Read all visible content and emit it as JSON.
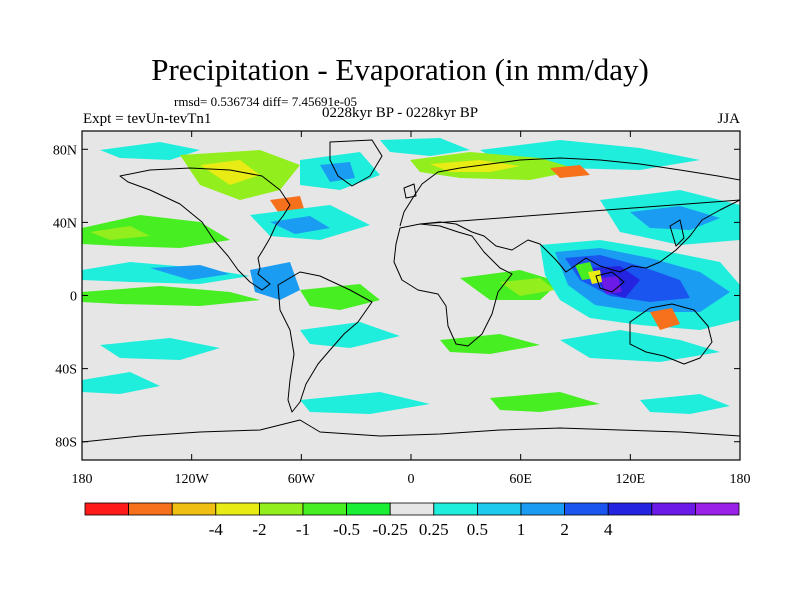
{
  "title": "Precipitation - Evaporation (in mm/day)",
  "stats": "rmsd= 0.536734 diff= 7.45691e-05",
  "expt": "Expt = tevUn-tevTn1",
  "period": "0228kyr BP - 0228kyr BP",
  "season": "JJA",
  "map": {
    "lon_range": [
      -180,
      180
    ],
    "lat_range": [
      -90,
      90
    ],
    "x_ticks": [
      {
        "lon": -180,
        "label": "180"
      },
      {
        "lon": -120,
        "label": "120W"
      },
      {
        "lon": -60,
        "label": "60W"
      },
      {
        "lon": 0,
        "label": "0"
      },
      {
        "lon": 60,
        "label": "60E"
      },
      {
        "lon": 120,
        "label": "120E"
      },
      {
        "lon": 180,
        "label": "180"
      }
    ],
    "y_ticks": [
      {
        "lat": 80,
        "label": "80N"
      },
      {
        "lat": 40,
        "label": "40N"
      },
      {
        "lat": 0,
        "label": "0"
      },
      {
        "lat": -40,
        "label": "40S"
      },
      {
        "lat": -80,
        "label": "80S"
      }
    ],
    "background_color": "#e6e6e6"
  },
  "colorbar": {
    "colors": [
      "#ff1a1a",
      "#f7701c",
      "#f0bf14",
      "#e8ec14",
      "#92ee1c",
      "#46ee22",
      "#1aee35",
      "#e6e6e6",
      "#20eedc",
      "#1ecbee",
      "#1a9cf2",
      "#1a55f0",
      "#2323e0",
      "#6b1ae8",
      "#9a22e8"
    ],
    "labels": [
      "-4",
      "-2",
      "-1",
      "-0.5",
      "-0.25",
      "0.25",
      "0.5",
      "1",
      "2",
      "4"
    ]
  }
}
